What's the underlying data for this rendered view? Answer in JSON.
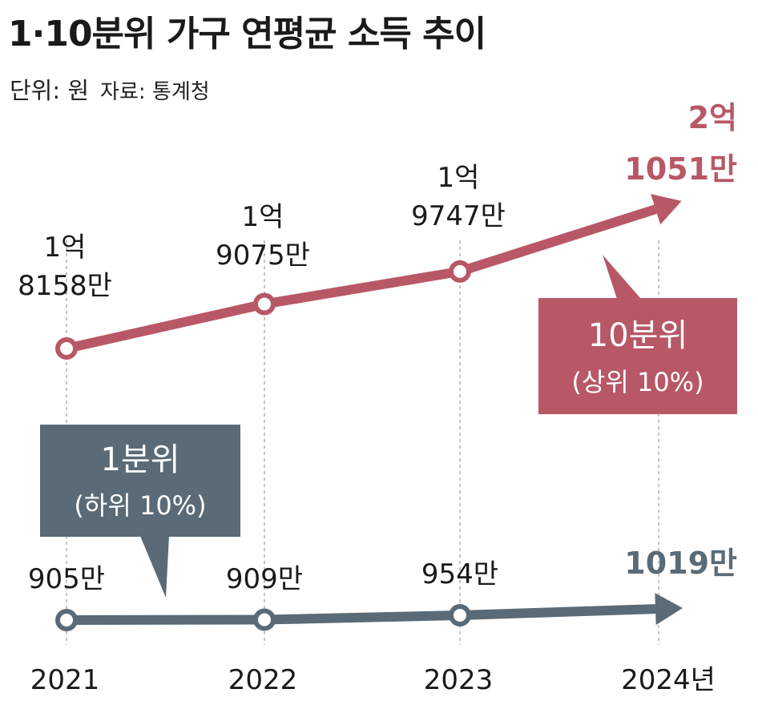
{
  "title": "1·10분위 가구 연평균 소득 추이",
  "unit": "단위: 원",
  "source": "자료: 통계청",
  "colors": {
    "top": "#b85866",
    "bottom": "#5a6b77",
    "grid": "#b0b0b0"
  },
  "chart_data": {
    "type": "line",
    "categories": [
      "2021",
      "2022",
      "2023",
      "2024년"
    ],
    "series": [
      {
        "name": "10분위 (상위 10%)",
        "box_line1": "10분위",
        "box_line2": "(상위 10%)",
        "values": [
          181580000,
          190750000,
          197470000,
          210510000
        ],
        "labels": [
          [
            "1억",
            "8158만"
          ],
          [
            "1억",
            "9075만"
          ],
          [
            "1억",
            "9747만"
          ],
          [
            "2억",
            "1051만"
          ]
        ]
      },
      {
        "name": "1분위 (하위 10%)",
        "box_line1": "1분위",
        "box_line2": "(하위 10%)",
        "values": [
          9050000,
          9090000,
          9540000,
          10190000
        ],
        "labels": [
          [
            "905만"
          ],
          [
            "909만"
          ],
          [
            "954만"
          ],
          [
            "1019만"
          ]
        ]
      }
    ]
  }
}
